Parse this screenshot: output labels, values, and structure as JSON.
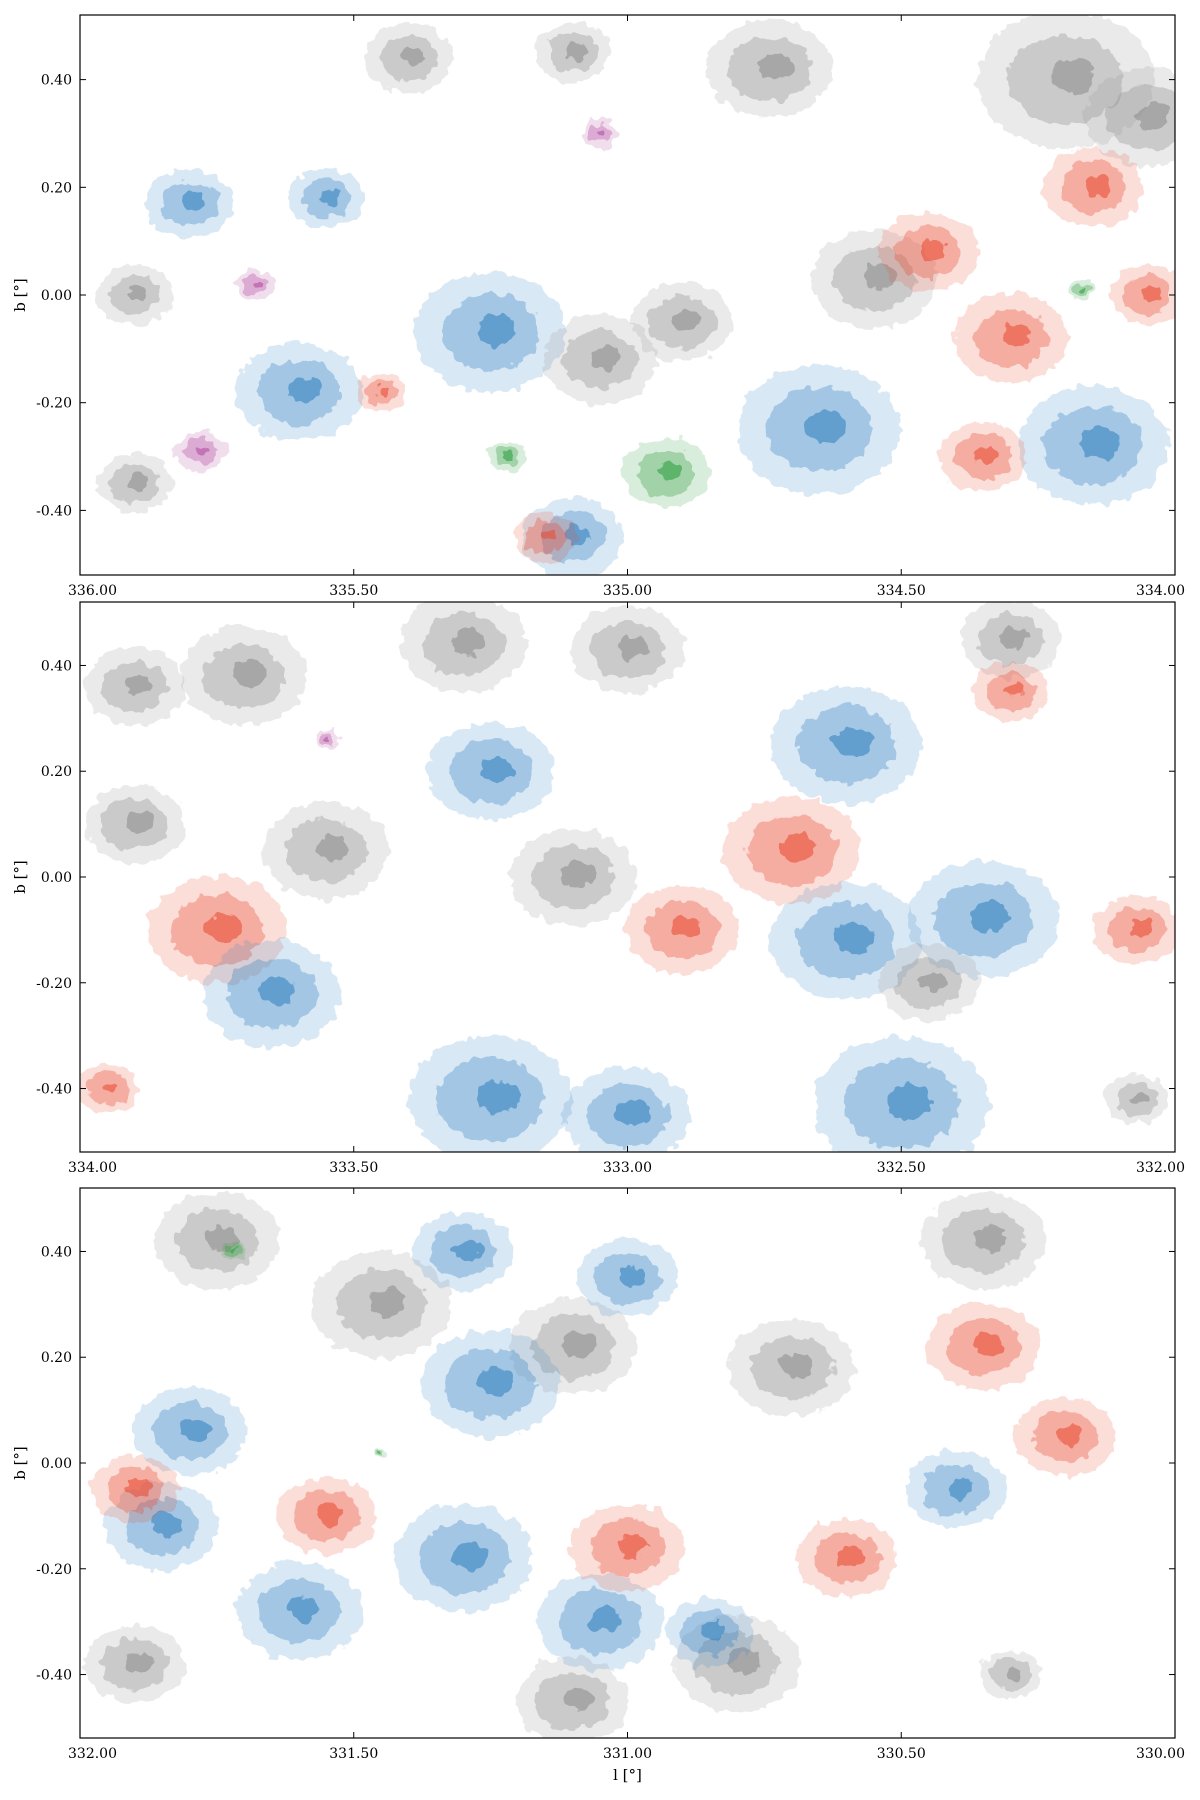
{
  "figure": {
    "description_colors": {
      "gray": "#8a8a8a",
      "blue": "#2f7fc0",
      "red": "#e8482f",
      "magenta": "#b0449c",
      "green": "#2a9a3a"
    }
  },
  "chart_data": [
    {
      "type": "heatmap",
      "title": "",
      "xlabel": "",
      "ylabel": "b [°]",
      "xlim": [
        336.0,
        334.0
      ],
      "ylim": [
        -0.52,
        0.52
      ],
      "x_ticks": [
        "336.00",
        "335.50",
        "335.00",
        "334.50",
        "334.00"
      ],
      "x_tick_values": [
        336.0,
        335.5,
        335.0,
        334.5,
        334.0
      ],
      "y_ticks": [
        "0.40",
        "0.20",
        "0.00",
        "-0.20",
        "-0.40"
      ],
      "y_tick_values": [
        0.4,
        0.2,
        0.0,
        -0.2,
        -0.4
      ],
      "blobs": [
        {
          "l": 335.4,
          "b": 0.44,
          "r": 0.07,
          "c": "gray"
        },
        {
          "l": 335.1,
          "b": 0.45,
          "r": 0.06,
          "c": "gray"
        },
        {
          "l": 334.74,
          "b": 0.42,
          "r": 0.1,
          "c": "gray"
        },
        {
          "l": 334.2,
          "b": 0.4,
          "r": 0.14,
          "c": "gray"
        },
        {
          "l": 334.05,
          "b": 0.33,
          "r": 0.1,
          "c": "gray"
        },
        {
          "l": 335.8,
          "b": 0.17,
          "r": 0.07,
          "c": "blue"
        },
        {
          "l": 335.55,
          "b": 0.18,
          "r": 0.06,
          "c": "blue"
        },
        {
          "l": 335.6,
          "b": -0.18,
          "r": 0.1,
          "c": "blue"
        },
        {
          "l": 335.25,
          "b": -0.07,
          "r": 0.12,
          "c": "blue"
        },
        {
          "l": 334.65,
          "b": -0.25,
          "r": 0.13,
          "c": "blue"
        },
        {
          "l": 334.15,
          "b": -0.28,
          "r": 0.12,
          "c": "blue"
        },
        {
          "l": 335.1,
          "b": -0.45,
          "r": 0.08,
          "c": "blue"
        },
        {
          "l": 335.05,
          "b": -0.12,
          "r": 0.09,
          "c": "gray"
        },
        {
          "l": 334.9,
          "b": -0.05,
          "r": 0.08,
          "c": "gray"
        },
        {
          "l": 334.55,
          "b": 0.03,
          "r": 0.1,
          "c": "gray"
        },
        {
          "l": 334.15,
          "b": 0.2,
          "r": 0.08,
          "c": "red"
        },
        {
          "l": 334.3,
          "b": -0.08,
          "r": 0.09,
          "c": "red"
        },
        {
          "l": 334.05,
          "b": 0.0,
          "r": 0.06,
          "c": "red"
        },
        {
          "l": 334.45,
          "b": 0.08,
          "r": 0.08,
          "c": "red"
        },
        {
          "l": 334.35,
          "b": -0.3,
          "r": 0.07,
          "c": "red"
        },
        {
          "l": 334.93,
          "b": -0.33,
          "r": 0.07,
          "c": "green"
        },
        {
          "l": 335.22,
          "b": -0.3,
          "r": 0.03,
          "c": "green"
        },
        {
          "l": 334.17,
          "b": 0.01,
          "r": 0.02,
          "c": "green"
        },
        {
          "l": 335.78,
          "b": -0.29,
          "r": 0.04,
          "c": "magenta"
        },
        {
          "l": 335.68,
          "b": 0.02,
          "r": 0.03,
          "c": "magenta"
        },
        {
          "l": 335.05,
          "b": 0.3,
          "r": 0.03,
          "c": "magenta"
        },
        {
          "l": 335.45,
          "b": -0.18,
          "r": 0.04,
          "c": "red"
        },
        {
          "l": 335.15,
          "b": -0.45,
          "r": 0.05,
          "c": "red"
        },
        {
          "l": 335.9,
          "b": -0.35,
          "r": 0.06,
          "c": "gray"
        },
        {
          "l": 335.9,
          "b": 0.0,
          "r": 0.06,
          "c": "gray"
        }
      ]
    },
    {
      "type": "heatmap",
      "title": "",
      "xlabel": "",
      "ylabel": "b [°]",
      "xlim": [
        334.0,
        332.0
      ],
      "ylim": [
        -0.52,
        0.52
      ],
      "x_ticks": [
        "334.00",
        "333.50",
        "333.00",
        "332.50",
        "332.00"
      ],
      "x_tick_values": [
        334.0,
        333.5,
        333.0,
        332.5,
        332.0
      ],
      "y_ticks": [
        "0.40",
        "0.20",
        "0.00",
        "-0.20",
        "-0.40"
      ],
      "y_tick_values": [
        0.4,
        0.2,
        0.0,
        -0.2,
        -0.4
      ],
      "blobs": [
        {
          "l": 333.7,
          "b": 0.38,
          "r": 0.1,
          "c": "gray"
        },
        {
          "l": 333.3,
          "b": 0.44,
          "r": 0.1,
          "c": "gray"
        },
        {
          "l": 333.0,
          "b": 0.43,
          "r": 0.09,
          "c": "gray"
        },
        {
          "l": 333.9,
          "b": 0.36,
          "r": 0.08,
          "c": "gray"
        },
        {
          "l": 332.3,
          "b": 0.45,
          "r": 0.08,
          "c": "gray"
        },
        {
          "l": 333.55,
          "b": 0.05,
          "r": 0.1,
          "c": "gray"
        },
        {
          "l": 333.1,
          "b": 0.0,
          "r": 0.1,
          "c": "gray"
        },
        {
          "l": 333.9,
          "b": 0.1,
          "r": 0.08,
          "c": "gray"
        },
        {
          "l": 333.75,
          "b": -0.1,
          "r": 0.11,
          "c": "red"
        },
        {
          "l": 332.9,
          "b": -0.1,
          "r": 0.09,
          "c": "red"
        },
        {
          "l": 332.7,
          "b": 0.05,
          "r": 0.11,
          "c": "red"
        },
        {
          "l": 332.07,
          "b": -0.1,
          "r": 0.07,
          "c": "red"
        },
        {
          "l": 332.3,
          "b": 0.35,
          "r": 0.06,
          "c": "red"
        },
        {
          "l": 333.95,
          "b": -0.4,
          "r": 0.05,
          "c": "red"
        },
        {
          "l": 333.65,
          "b": -0.22,
          "r": 0.11,
          "c": "blue"
        },
        {
          "l": 333.25,
          "b": -0.42,
          "r": 0.13,
          "c": "blue"
        },
        {
          "l": 333.0,
          "b": -0.45,
          "r": 0.1,
          "c": "blue"
        },
        {
          "l": 332.6,
          "b": -0.12,
          "r": 0.12,
          "c": "blue"
        },
        {
          "l": 332.35,
          "b": -0.08,
          "r": 0.12,
          "c": "blue"
        },
        {
          "l": 332.5,
          "b": -0.43,
          "r": 0.14,
          "c": "blue"
        },
        {
          "l": 332.6,
          "b": 0.25,
          "r": 0.12,
          "c": "blue"
        },
        {
          "l": 333.25,
          "b": 0.2,
          "r": 0.1,
          "c": "blue"
        },
        {
          "l": 332.07,
          "b": -0.42,
          "r": 0.05,
          "c": "gray"
        },
        {
          "l": 332.45,
          "b": -0.2,
          "r": 0.08,
          "c": "gray"
        },
        {
          "l": 333.55,
          "b": 0.26,
          "r": 0.02,
          "c": "magenta"
        }
      ]
    },
    {
      "type": "heatmap",
      "title": "",
      "xlabel": "l [°]",
      "ylabel": "b [°]",
      "xlim": [
        332.0,
        330.0
      ],
      "ylim": [
        -0.52,
        0.52
      ],
      "x_ticks": [
        "332.00",
        "331.50",
        "331.00",
        "330.50",
        "330.00"
      ],
      "x_tick_values": [
        332.0,
        331.5,
        331.0,
        330.5,
        330.0
      ],
      "y_ticks": [
        "0.40",
        "0.20",
        "0.00",
        "-0.20",
        "-0.40"
      ],
      "y_tick_values": [
        0.4,
        0.2,
        0.0,
        -0.2,
        -0.4
      ],
      "blobs": [
        {
          "l": 331.75,
          "b": 0.42,
          "r": 0.1,
          "c": "gray"
        },
        {
          "l": 331.45,
          "b": 0.3,
          "r": 0.11,
          "c": "gray"
        },
        {
          "l": 331.1,
          "b": 0.22,
          "r": 0.1,
          "c": "gray"
        },
        {
          "l": 330.7,
          "b": 0.18,
          "r": 0.1,
          "c": "gray"
        },
        {
          "l": 330.35,
          "b": 0.42,
          "r": 0.1,
          "c": "gray"
        },
        {
          "l": 330.8,
          "b": -0.38,
          "r": 0.1,
          "c": "gray"
        },
        {
          "l": 331.1,
          "b": -0.45,
          "r": 0.09,
          "c": "gray"
        },
        {
          "l": 331.9,
          "b": -0.38,
          "r": 0.08,
          "c": "gray"
        },
        {
          "l": 330.3,
          "b": -0.4,
          "r": 0.05,
          "c": "gray"
        },
        {
          "l": 331.3,
          "b": 0.4,
          "r": 0.08,
          "c": "blue"
        },
        {
          "l": 331.0,
          "b": 0.35,
          "r": 0.08,
          "c": "blue"
        },
        {
          "l": 331.25,
          "b": 0.15,
          "r": 0.11,
          "c": "blue"
        },
        {
          "l": 331.8,
          "b": 0.06,
          "r": 0.09,
          "c": "blue"
        },
        {
          "l": 331.85,
          "b": -0.12,
          "r": 0.09,
          "c": "blue"
        },
        {
          "l": 331.6,
          "b": -0.28,
          "r": 0.1,
          "c": "blue"
        },
        {
          "l": 331.3,
          "b": -0.18,
          "r": 0.11,
          "c": "blue"
        },
        {
          "l": 331.05,
          "b": -0.3,
          "r": 0.1,
          "c": "blue"
        },
        {
          "l": 330.85,
          "b": -0.32,
          "r": 0.07,
          "c": "blue"
        },
        {
          "l": 330.4,
          "b": -0.05,
          "r": 0.08,
          "c": "blue"
        },
        {
          "l": 331.55,
          "b": -0.1,
          "r": 0.08,
          "c": "red"
        },
        {
          "l": 331.0,
          "b": -0.16,
          "r": 0.09,
          "c": "red"
        },
        {
          "l": 331.9,
          "b": -0.05,
          "r": 0.07,
          "c": "red"
        },
        {
          "l": 330.35,
          "b": 0.22,
          "r": 0.09,
          "c": "red"
        },
        {
          "l": 330.2,
          "b": 0.05,
          "r": 0.08,
          "c": "red"
        },
        {
          "l": 330.6,
          "b": -0.18,
          "r": 0.08,
          "c": "red"
        },
        {
          "l": 331.45,
          "b": 0.02,
          "r": 0.01,
          "c": "green"
        },
        {
          "l": 331.72,
          "b": 0.4,
          "r": 0.02,
          "c": "green"
        }
      ]
    }
  ]
}
